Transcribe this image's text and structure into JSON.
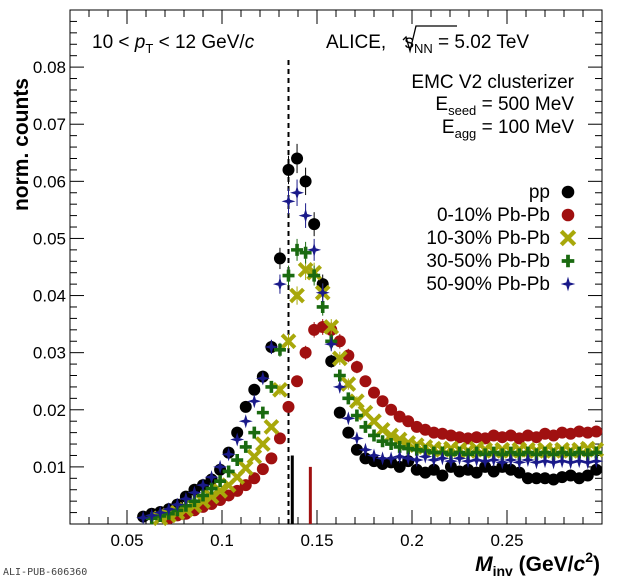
{
  "chart_data": {
    "type": "scatter",
    "title": "",
    "xlabel_main": "M",
    "xlabel_sub": "inv",
    "xlabel_unit_pre": " (GeV/",
    "xlabel_unit_c": "c",
    "xlabel_unit_sup": "2",
    "xlabel_unit_post": ")",
    "ylabel": "norm. counts",
    "xlim": [
      0.02,
      0.3
    ],
    "ylim": [
      0.0,
      0.09
    ],
    "xticks": [
      {
        "v": 0.05,
        "label": "0.05"
      },
      {
        "v": 0.1,
        "label": "0.1"
      },
      {
        "v": 0.15,
        "label": "0.15"
      },
      {
        "v": 0.2,
        "label": "0.2"
      },
      {
        "v": 0.25,
        "label": "0.25"
      }
    ],
    "yticks": [
      {
        "v": 0.01,
        "label": "0.01"
      },
      {
        "v": 0.02,
        "label": "0.02"
      },
      {
        "v": 0.03,
        "label": "0.03"
      },
      {
        "v": 0.04,
        "label": "0.04"
      },
      {
        "v": 0.05,
        "label": "0.05"
      },
      {
        "v": 0.06,
        "label": "0.06"
      },
      {
        "v": 0.07,
        "label": "0.07"
      },
      {
        "v": 0.08,
        "label": "0.08"
      }
    ],
    "reference_line_x": 0.135,
    "peak_markers": [
      {
        "x": 0.137,
        "height": 0.012,
        "color": "#000000"
      },
      {
        "x": 0.1465,
        "height": 0.01,
        "color": "#a01010"
      }
    ],
    "annotations": {
      "kin_pre": "10 < ",
      "kin_p": "p",
      "kin_sub": "T",
      "kin_post": " < 12 GeV/",
      "kin_c": "c",
      "alice_pre": "ALICE, ",
      "alice_s": "s",
      "alice_sub": "NN",
      "alice_post": " = 5.02 TeV",
      "emc": "EMC V2 clusterizer",
      "eseed_pre": "E",
      "eseed_sub": "seed",
      "eseed_post": " = 500 MeV",
      "eagg_pre": "E",
      "eagg_sub": "agg",
      "eagg_post": " = 100 MeV"
    },
    "legend_position": "right",
    "watermark": "ALI-PUB-606360",
    "series": [
      {
        "name": "pp",
        "marker": "circle",
        "color": "#000000",
        "points": [
          [
            0.0585,
            0.0013
          ],
          [
            0.063,
            0.0018
          ],
          [
            0.0675,
            0.0021
          ],
          [
            0.072,
            0.0026
          ],
          [
            0.0765,
            0.0034
          ],
          [
            0.081,
            0.0048
          ],
          [
            0.0855,
            0.006
          ],
          [
            0.09,
            0.0068
          ],
          [
            0.0945,
            0.0078
          ],
          [
            0.099,
            0.0095
          ],
          [
            0.1035,
            0.0125
          ],
          [
            0.108,
            0.016
          ],
          [
            0.1125,
            0.0205
          ],
          [
            0.117,
            0.0235
          ],
          [
            0.1215,
            0.0258
          ],
          [
            0.126,
            0.031
          ],
          [
            0.1305,
            0.0465
          ],
          [
            0.135,
            0.062
          ],
          [
            0.1395,
            0.064
          ],
          [
            0.144,
            0.06
          ],
          [
            0.1485,
            0.0525
          ],
          [
            0.153,
            0.042
          ],
          [
            0.1575,
            0.0285
          ],
          [
            0.162,
            0.0195
          ],
          [
            0.1665,
            0.016
          ],
          [
            0.171,
            0.013
          ],
          [
            0.1755,
            0.0115
          ],
          [
            0.18,
            0.011
          ],
          [
            0.1845,
            0.0105
          ],
          [
            0.189,
            0.0108
          ],
          [
            0.1935,
            0.01
          ],
          [
            0.198,
            0.011
          ],
          [
            0.2025,
            0.0095
          ],
          [
            0.207,
            0.009
          ],
          [
            0.2115,
            0.0095
          ],
          [
            0.216,
            0.0085
          ],
          [
            0.2205,
            0.01
          ],
          [
            0.225,
            0.0092
          ],
          [
            0.2295,
            0.0095
          ],
          [
            0.234,
            0.009
          ],
          [
            0.2385,
            0.01
          ],
          [
            0.243,
            0.0092
          ],
          [
            0.2475,
            0.01
          ],
          [
            0.252,
            0.0095
          ],
          [
            0.2565,
            0.009
          ],
          [
            0.261,
            0.008
          ],
          [
            0.2655,
            0.008
          ],
          [
            0.27,
            0.008
          ],
          [
            0.2745,
            0.0078
          ],
          [
            0.279,
            0.0082
          ],
          [
            0.2835,
            0.0085
          ],
          [
            0.288,
            0.008
          ],
          [
            0.2925,
            0.0085
          ],
          [
            0.297,
            0.0095
          ]
        ]
      },
      {
        "name": "0-10% Pb-Pb",
        "marker": "circle",
        "color": "#a01010",
        "points": [
          [
            0.072,
            0.001
          ],
          [
            0.0765,
            0.0015
          ],
          [
            0.081,
            0.0018
          ],
          [
            0.0855,
            0.0024
          ],
          [
            0.09,
            0.003
          ],
          [
            0.0945,
            0.0035
          ],
          [
            0.099,
            0.0042
          ],
          [
            0.1035,
            0.005
          ],
          [
            0.108,
            0.0058
          ],
          [
            0.1125,
            0.0068
          ],
          [
            0.117,
            0.008
          ],
          [
            0.1215,
            0.0096
          ],
          [
            0.126,
            0.0115
          ],
          [
            0.1305,
            0.015
          ],
          [
            0.135,
            0.0205
          ],
          [
            0.1395,
            0.025
          ],
          [
            0.144,
            0.03
          ],
          [
            0.1485,
            0.034
          ],
          [
            0.153,
            0.0345
          ],
          [
            0.1575,
            0.034
          ],
          [
            0.162,
            0.032
          ],
          [
            0.1665,
            0.0295
          ],
          [
            0.171,
            0.0275
          ],
          [
            0.1755,
            0.025
          ],
          [
            0.18,
            0.023
          ],
          [
            0.1845,
            0.0215
          ],
          [
            0.189,
            0.02
          ],
          [
            0.1935,
            0.0188
          ],
          [
            0.198,
            0.018
          ],
          [
            0.2025,
            0.017
          ],
          [
            0.207,
            0.0165
          ],
          [
            0.2115,
            0.016
          ],
          [
            0.216,
            0.0158
          ],
          [
            0.2205,
            0.0155
          ],
          [
            0.225,
            0.0152
          ],
          [
            0.2295,
            0.015
          ],
          [
            0.234,
            0.0152
          ],
          [
            0.2385,
            0.015
          ],
          [
            0.243,
            0.0155
          ],
          [
            0.2475,
            0.0152
          ],
          [
            0.252,
            0.0155
          ],
          [
            0.2565,
            0.015
          ],
          [
            0.261,
            0.0155
          ],
          [
            0.2655,
            0.0152
          ],
          [
            0.27,
            0.0158
          ],
          [
            0.2745,
            0.0155
          ],
          [
            0.279,
            0.016
          ],
          [
            0.2835,
            0.0158
          ],
          [
            0.288,
            0.0162
          ],
          [
            0.2925,
            0.016
          ],
          [
            0.297,
            0.0162
          ]
        ]
      },
      {
        "name": "10-30% Pb-Pb",
        "marker": "cross",
        "color": "#a8a80a",
        "points": [
          [
            0.0675,
            0.001
          ],
          [
            0.072,
            0.0015
          ],
          [
            0.0765,
            0.002
          ],
          [
            0.081,
            0.0025
          ],
          [
            0.0855,
            0.0032
          ],
          [
            0.09,
            0.004
          ],
          [
            0.0945,
            0.0048
          ],
          [
            0.099,
            0.0058
          ],
          [
            0.1035,
            0.0068
          ],
          [
            0.108,
            0.0082
          ],
          [
            0.1125,
            0.0098
          ],
          [
            0.117,
            0.0118
          ],
          [
            0.1215,
            0.014
          ],
          [
            0.126,
            0.017
          ],
          [
            0.1305,
            0.0235
          ],
          [
            0.135,
            0.032
          ],
          [
            0.1395,
            0.04
          ],
          [
            0.144,
            0.0445
          ],
          [
            0.1485,
            0.044
          ],
          [
            0.153,
            0.0405
          ],
          [
            0.1575,
            0.0345
          ],
          [
            0.162,
            0.029
          ],
          [
            0.1665,
            0.0245
          ],
          [
            0.171,
            0.0215
          ],
          [
            0.1755,
            0.0195
          ],
          [
            0.18,
            0.018
          ],
          [
            0.1845,
            0.0165
          ],
          [
            0.189,
            0.0155
          ],
          [
            0.1935,
            0.0148
          ],
          [
            0.198,
            0.0142
          ],
          [
            0.2025,
            0.0138
          ],
          [
            0.207,
            0.0135
          ],
          [
            0.2115,
            0.0132
          ],
          [
            0.216,
            0.013
          ],
          [
            0.2205,
            0.0132
          ],
          [
            0.225,
            0.013
          ],
          [
            0.2295,
            0.0128
          ],
          [
            0.234,
            0.0132
          ],
          [
            0.2385,
            0.013
          ],
          [
            0.243,
            0.0128
          ],
          [
            0.2475,
            0.013
          ],
          [
            0.252,
            0.0128
          ],
          [
            0.2565,
            0.013
          ],
          [
            0.261,
            0.013
          ],
          [
            0.2655,
            0.0128
          ],
          [
            0.27,
            0.013
          ],
          [
            0.2745,
            0.0128
          ],
          [
            0.279,
            0.013
          ],
          [
            0.2835,
            0.0128
          ],
          [
            0.288,
            0.013
          ],
          [
            0.2925,
            0.0132
          ],
          [
            0.297,
            0.013
          ]
        ]
      },
      {
        "name": "30-50% Pb-Pb",
        "marker": "plus",
        "color": "#1a6a10",
        "points": [
          [
            0.063,
            0.001
          ],
          [
            0.0675,
            0.0014
          ],
          [
            0.072,
            0.0018
          ],
          [
            0.0765,
            0.0024
          ],
          [
            0.081,
            0.0032
          ],
          [
            0.0855,
            0.004
          ],
          [
            0.09,
            0.005
          ],
          [
            0.0945,
            0.0062
          ],
          [
            0.099,
            0.0075
          ],
          [
            0.1035,
            0.0092
          ],
          [
            0.108,
            0.0112
          ],
          [
            0.1125,
            0.0135
          ],
          [
            0.117,
            0.016
          ],
          [
            0.1215,
            0.0195
          ],
          [
            0.126,
            0.024
          ],
          [
            0.1305,
            0.0305
          ],
          [
            0.135,
            0.0435
          ],
          [
            0.1395,
            0.048
          ],
          [
            0.144,
            0.0475
          ],
          [
            0.1485,
            0.0435
          ],
          [
            0.153,
            0.038
          ],
          [
            0.1575,
            0.032
          ],
          [
            0.162,
            0.026
          ],
          [
            0.1665,
            0.022
          ],
          [
            0.171,
            0.019
          ],
          [
            0.1755,
            0.017
          ],
          [
            0.18,
            0.0155
          ],
          [
            0.1845,
            0.0145
          ],
          [
            0.189,
            0.014
          ],
          [
            0.1935,
            0.0135
          ],
          [
            0.198,
            0.0132
          ],
          [
            0.2025,
            0.013
          ],
          [
            0.207,
            0.0128
          ],
          [
            0.2115,
            0.0125
          ],
          [
            0.216,
            0.0125
          ],
          [
            0.2205,
            0.0122
          ],
          [
            0.225,
            0.0125
          ],
          [
            0.2295,
            0.0122
          ],
          [
            0.234,
            0.0125
          ],
          [
            0.2385,
            0.0122
          ],
          [
            0.243,
            0.0125
          ],
          [
            0.2475,
            0.0122
          ],
          [
            0.252,
            0.0125
          ],
          [
            0.2565,
            0.0122
          ],
          [
            0.261,
            0.0125
          ],
          [
            0.2655,
            0.0122
          ],
          [
            0.27,
            0.0125
          ],
          [
            0.2745,
            0.0122
          ],
          [
            0.279,
            0.0125
          ],
          [
            0.2835,
            0.0122
          ],
          [
            0.288,
            0.0125
          ],
          [
            0.2925,
            0.0122
          ],
          [
            0.297,
            0.0125
          ]
        ]
      },
      {
        "name": "50-90% Pb-Pb",
        "marker": "star",
        "color": "#1a1a8a",
        "points": [
          [
            0.0585,
            0.0011
          ],
          [
            0.063,
            0.0015
          ],
          [
            0.0675,
            0.002
          ],
          [
            0.072,
            0.0026
          ],
          [
            0.0765,
            0.0034
          ],
          [
            0.081,
            0.0044
          ],
          [
            0.0855,
            0.0055
          ],
          [
            0.09,
            0.0068
          ],
          [
            0.0945,
            0.0082
          ],
          [
            0.099,
            0.01
          ],
          [
            0.1035,
            0.0122
          ],
          [
            0.108,
            0.0148
          ],
          [
            0.1125,
            0.018
          ],
          [
            0.117,
            0.0215
          ],
          [
            0.1215,
            0.0255
          ],
          [
            0.126,
            0.031
          ],
          [
            0.1305,
            0.042
          ],
          [
            0.135,
            0.0565
          ],
          [
            0.1395,
            0.058
          ],
          [
            0.144,
            0.054
          ],
          [
            0.1485,
            0.048
          ],
          [
            0.153,
            0.0405
          ],
          [
            0.1575,
            0.0315
          ],
          [
            0.162,
            0.024
          ],
          [
            0.1665,
            0.0185
          ],
          [
            0.171,
            0.015
          ],
          [
            0.1755,
            0.013
          ],
          [
            0.18,
            0.012
          ],
          [
            0.1845,
            0.0115
          ],
          [
            0.189,
            0.0115
          ],
          [
            0.1935,
            0.0118
          ],
          [
            0.198,
            0.0115
          ],
          [
            0.2025,
            0.0112
          ],
          [
            0.207,
            0.0118
          ],
          [
            0.2115,
            0.0112
          ],
          [
            0.216,
            0.0115
          ],
          [
            0.2205,
            0.011
          ],
          [
            0.225,
            0.0115
          ],
          [
            0.2295,
            0.011
          ],
          [
            0.234,
            0.0112
          ],
          [
            0.2385,
            0.011
          ],
          [
            0.243,
            0.0112
          ],
          [
            0.2475,
            0.0108
          ],
          [
            0.252,
            0.0112
          ],
          [
            0.2565,
            0.0108
          ],
          [
            0.261,
            0.0112
          ],
          [
            0.2655,
            0.0108
          ],
          [
            0.27,
            0.011
          ],
          [
            0.2745,
            0.0108
          ],
          [
            0.279,
            0.011
          ],
          [
            0.2835,
            0.0108
          ],
          [
            0.288,
            0.011
          ],
          [
            0.2925,
            0.0108
          ],
          [
            0.297,
            0.011
          ]
        ]
      }
    ]
  }
}
